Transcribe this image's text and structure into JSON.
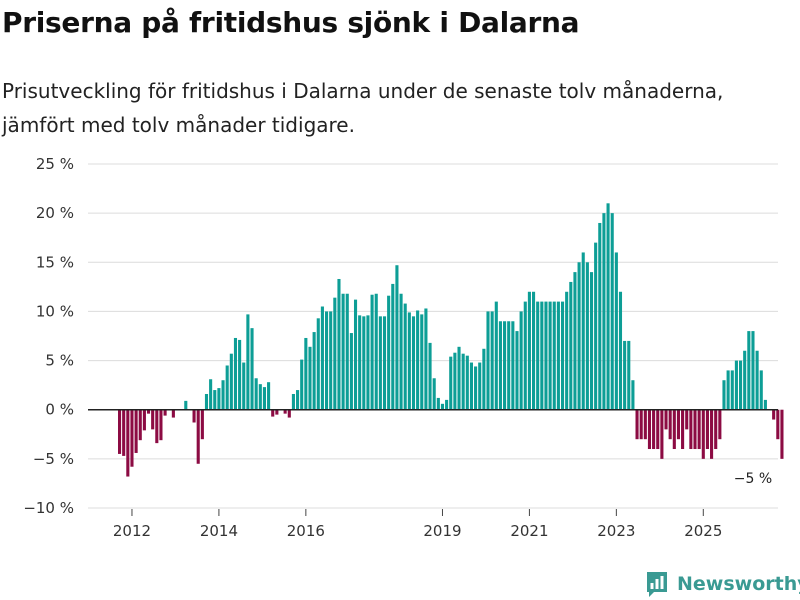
{
  "header": {
    "title": "Priserna på fritidshus sjönk i Dalarna",
    "subtitle": "Prisutveckling för fritidshus i Dalarna under de senaste tolv månaderna, jämfört med tolv månader tidigare."
  },
  "brand": {
    "name": "Newsworthy",
    "color": "#3a9a93"
  },
  "colors": {
    "positive": "#0d9e96",
    "negative": "#8c0b43",
    "grid": "#dcdcdc",
    "axis": "#222222"
  },
  "chart_data": {
    "type": "bar",
    "title": "Priserna på fritidshus sjönk i Dalarna",
    "xlabel": "",
    "ylabel": "",
    "ylim": [
      -10,
      25
    ],
    "y_ticks": [
      -10,
      -5,
      0,
      5,
      10,
      15,
      20,
      25
    ],
    "y_tick_labels": [
      "−10 %",
      "−5 %",
      "0 %",
      "5 %",
      "10 %",
      "15 %",
      "20 %",
      "25 %"
    ],
    "x_tick_labels": [
      "2012",
      "2014",
      "2016",
      "2019",
      "2021",
      "2023",
      "2025"
    ],
    "x_tick_month_index": [
      3,
      24,
      45,
      78,
      99,
      120,
      141
    ],
    "start_month": "2011-09",
    "grid": true,
    "legend": "none",
    "annotation": {
      "label": "−5 %",
      "month_index": 153,
      "value": -5
    },
    "series": [
      {
        "name": "Prisutveckling",
        "values": [
          -4.5,
          -4.7,
          -6.8,
          -5.8,
          -4.4,
          -3.1,
          -2.1,
          -0.4,
          -2.0,
          -3.4,
          -3.1,
          -0.6,
          0,
          -0.8,
          0,
          0,
          0.9,
          0,
          -1.3,
          -5.5,
          -3.0,
          1.6,
          3.1,
          2.0,
          2.2,
          3.0,
          4.5,
          5.7,
          7.3,
          7.1,
          4.8,
          9.7,
          8.3,
          3.2,
          2.6,
          2.3,
          2.8,
          -0.7,
          -0.5,
          0,
          -0.4,
          -0.8,
          1.6,
          2.0,
          5.1,
          7.3,
          6.4,
          7.9,
          9.3,
          10.5,
          10.0,
          10.0,
          11.4,
          13.3,
          11.8,
          11.8,
          7.8,
          11.2,
          9.6,
          9.5,
          9.6,
          11.7,
          11.8,
          9.5,
          9.5,
          11.6,
          12.8,
          14.7,
          11.8,
          10.8,
          9.9,
          9.5,
          10.1,
          9.7,
          10.3,
          6.8,
          3.2,
          1.2,
          0.6,
          1.0,
          5.4,
          5.8,
          6.4,
          5.7,
          5.5,
          4.8,
          4.4,
          4.8,
          6.2,
          10.0,
          10.0,
          11.0,
          9.0,
          9.0,
          9.0,
          9.0,
          8.0,
          10.0,
          11.0,
          12.0,
          12.0,
          11.0,
          11.0,
          11.0,
          11.0,
          11.0,
          11.0,
          11.0,
          12.0,
          13.0,
          14.0,
          15.0,
          16.0,
          15.0,
          14.0,
          17.0,
          19.0,
          20.0,
          21.0,
          20.0,
          16.0,
          12.0,
          7.0,
          7.0,
          3.0,
          -3.0,
          -3.0,
          -3.0,
          -4.0,
          -4.0,
          -4.0,
          -5.0,
          -2.0,
          -3.0,
          -4.0,
          -3.0,
          -4.0,
          -2.0,
          -4.0,
          -4.0,
          -4.0,
          -5.0,
          -4.0,
          -5.0,
          -4.0,
          -3.0,
          3.0,
          4.0,
          4.0,
          5.0,
          5.0,
          6.0,
          8.0,
          8.0,
          6.0,
          4.0,
          1.0,
          0,
          -1.0,
          -3.0,
          -5.0
        ]
      }
    ]
  }
}
